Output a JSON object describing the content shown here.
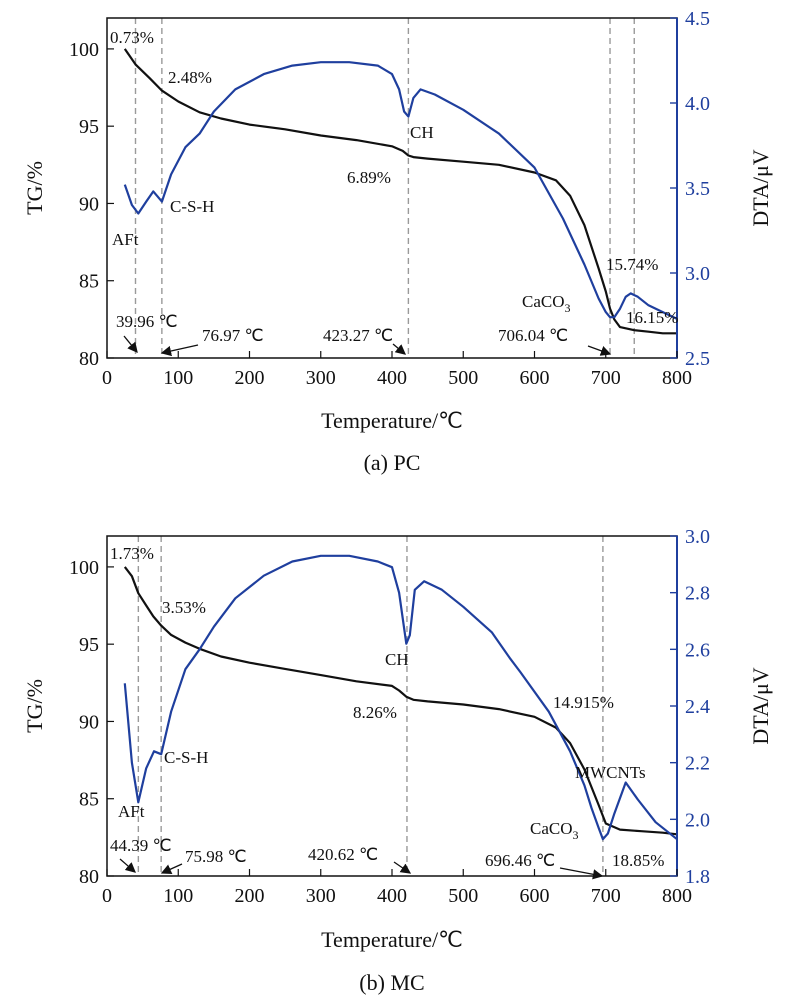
{
  "colors": {
    "tg": "#111111",
    "dta": "#1f3f9e",
    "vline": "#9a9a9a"
  },
  "chart_data": [
    {
      "type": "line",
      "caption": "(a) PC",
      "xlabel": "Temperature/℃",
      "ylabel": "TG/%",
      "y2label": "DTA/μV",
      "xlim": [
        0,
        800
      ],
      "ylim": [
        80,
        102
      ],
      "y2lim": [
        2.5,
        4.5
      ],
      "xticks": [
        "0",
        "100",
        "200",
        "300",
        "400",
        "500",
        "600",
        "700",
        "800"
      ],
      "yticks": [
        "80",
        "85",
        "90",
        "95",
        "100"
      ],
      "y2ticks": [
        "2.5",
        "3.0",
        "3.5",
        "4.0",
        "4.5"
      ],
      "series": [
        {
          "axis": "left",
          "x": [
            25,
            40,
            60,
            77,
            100,
            130,
            160,
            200,
            250,
            300,
            350,
            400,
            415,
            423,
            430,
            450,
            500,
            550,
            600,
            630,
            650,
            670,
            690,
            700,
            706,
            712,
            720,
            740,
            760,
            780,
            800
          ],
          "y": [
            100,
            99.0,
            98.1,
            97.3,
            96.6,
            95.9,
            95.5,
            95.1,
            94.8,
            94.4,
            94.1,
            93.7,
            93.4,
            93.1,
            93.0,
            92.9,
            92.7,
            92.5,
            92.0,
            91.5,
            90.5,
            88.6,
            85.8,
            84.3,
            83.2,
            82.5,
            82.0,
            81.8,
            81.7,
            81.6,
            81.6
          ]
        },
        {
          "axis": "right",
          "x": [
            25,
            35,
            44,
            55,
            65,
            77,
            90,
            110,
            130,
            150,
            180,
            220,
            260,
            300,
            340,
            380,
            400,
            410,
            417,
            423,
            430,
            440,
            460,
            500,
            550,
            600,
            640,
            670,
            690,
            700,
            706,
            712,
            720,
            728,
            735,
            745,
            760,
            780,
            800
          ],
          "y": [
            3.52,
            3.4,
            3.35,
            3.42,
            3.48,
            3.42,
            3.58,
            3.74,
            3.82,
            3.95,
            4.08,
            4.17,
            4.22,
            4.24,
            4.24,
            4.22,
            4.17,
            4.08,
            3.95,
            3.92,
            4.03,
            4.08,
            4.05,
            3.96,
            3.82,
            3.62,
            3.32,
            3.05,
            2.85,
            2.77,
            2.74,
            2.74,
            2.79,
            2.86,
            2.88,
            2.86,
            2.81,
            2.77,
            2.73
          ]
        }
      ],
      "vlines": [
        40,
        77,
        423,
        706,
        740
      ],
      "annotations": {
        "mass": [
          "0.73%",
          "2.48%",
          "6.89%",
          "15.74%",
          "16.15%"
        ],
        "peaks": [
          "39.96 ℃",
          "76.97 ℃",
          "423.27 ℃",
          "706.04 ℃"
        ],
        "phases": [
          "AFt",
          "C-S-H",
          "CH",
          "CaCO",
          "3"
        ]
      }
    },
    {
      "type": "line",
      "caption": "(b) MC",
      "xlabel": "Temperature/℃",
      "ylabel": "TG/%",
      "y2label": "DTA/μV",
      "xlim": [
        0,
        800
      ],
      "ylim": [
        80,
        102
      ],
      "y2lim": [
        1.8,
        3.0
      ],
      "xticks": [
        "0",
        "100",
        "200",
        "300",
        "400",
        "500",
        "600",
        "700",
        "800"
      ],
      "yticks": [
        "80",
        "85",
        "90",
        "95",
        "100"
      ],
      "y2ticks": [
        "1.8",
        "2.0",
        "2.2",
        "2.4",
        "2.6",
        "2.8",
        "3.0"
      ],
      "series": [
        {
          "axis": "left",
          "x": [
            25,
            35,
            44,
            55,
            65,
            76,
            90,
            110,
            130,
            160,
            200,
            250,
            300,
            350,
            400,
            410,
            420,
            430,
            450,
            500,
            550,
            600,
            630,
            650,
            670,
            690,
            700,
            720,
            750,
            780,
            800
          ],
          "y": [
            100,
            99.4,
            98.3,
            97.5,
            96.8,
            96.2,
            95.6,
            95.1,
            94.7,
            94.2,
            93.8,
            93.4,
            93.0,
            92.6,
            92.3,
            92.0,
            91.6,
            91.4,
            91.3,
            91.1,
            90.8,
            90.3,
            89.6,
            88.6,
            86.9,
            84.6,
            83.4,
            83.0,
            82.9,
            82.8,
            82.7
          ]
        },
        {
          "axis": "right",
          "x": [
            25,
            35,
            44,
            55,
            66,
            76,
            90,
            110,
            130,
            150,
            180,
            220,
            260,
            300,
            340,
            380,
            400,
            410,
            420,
            425,
            432,
            445,
            470,
            500,
            540,
            565,
            580,
            620,
            650,
            670,
            680,
            690,
            696,
            703,
            712,
            728,
            745,
            770,
            800
          ],
          "y": [
            2.48,
            2.2,
            2.06,
            2.18,
            2.24,
            2.23,
            2.38,
            2.53,
            2.6,
            2.68,
            2.78,
            2.86,
            2.91,
            2.93,
            2.93,
            2.91,
            2.89,
            2.8,
            2.62,
            2.65,
            2.81,
            2.84,
            2.81,
            2.75,
            2.66,
            2.57,
            2.52,
            2.38,
            2.24,
            2.12,
            2.04,
            1.97,
            1.93,
            1.95,
            2.02,
            2.13,
            2.07,
            1.99,
            1.93
          ]
        }
      ],
      "vlines": [
        44,
        76,
        421,
        696
      ],
      "annotations": {
        "mass": [
          "1.73%",
          "3.53%",
          "8.26%",
          "14.915%",
          "18.85%"
        ],
        "peaks": [
          "44.39 ℃",
          "75.98 ℃",
          "420.62 ℃",
          "696.46 ℃"
        ],
        "phases": [
          "AFt",
          "C-S-H",
          "CH",
          "CaCO",
          "3",
          "MWCNTs"
        ]
      }
    }
  ]
}
